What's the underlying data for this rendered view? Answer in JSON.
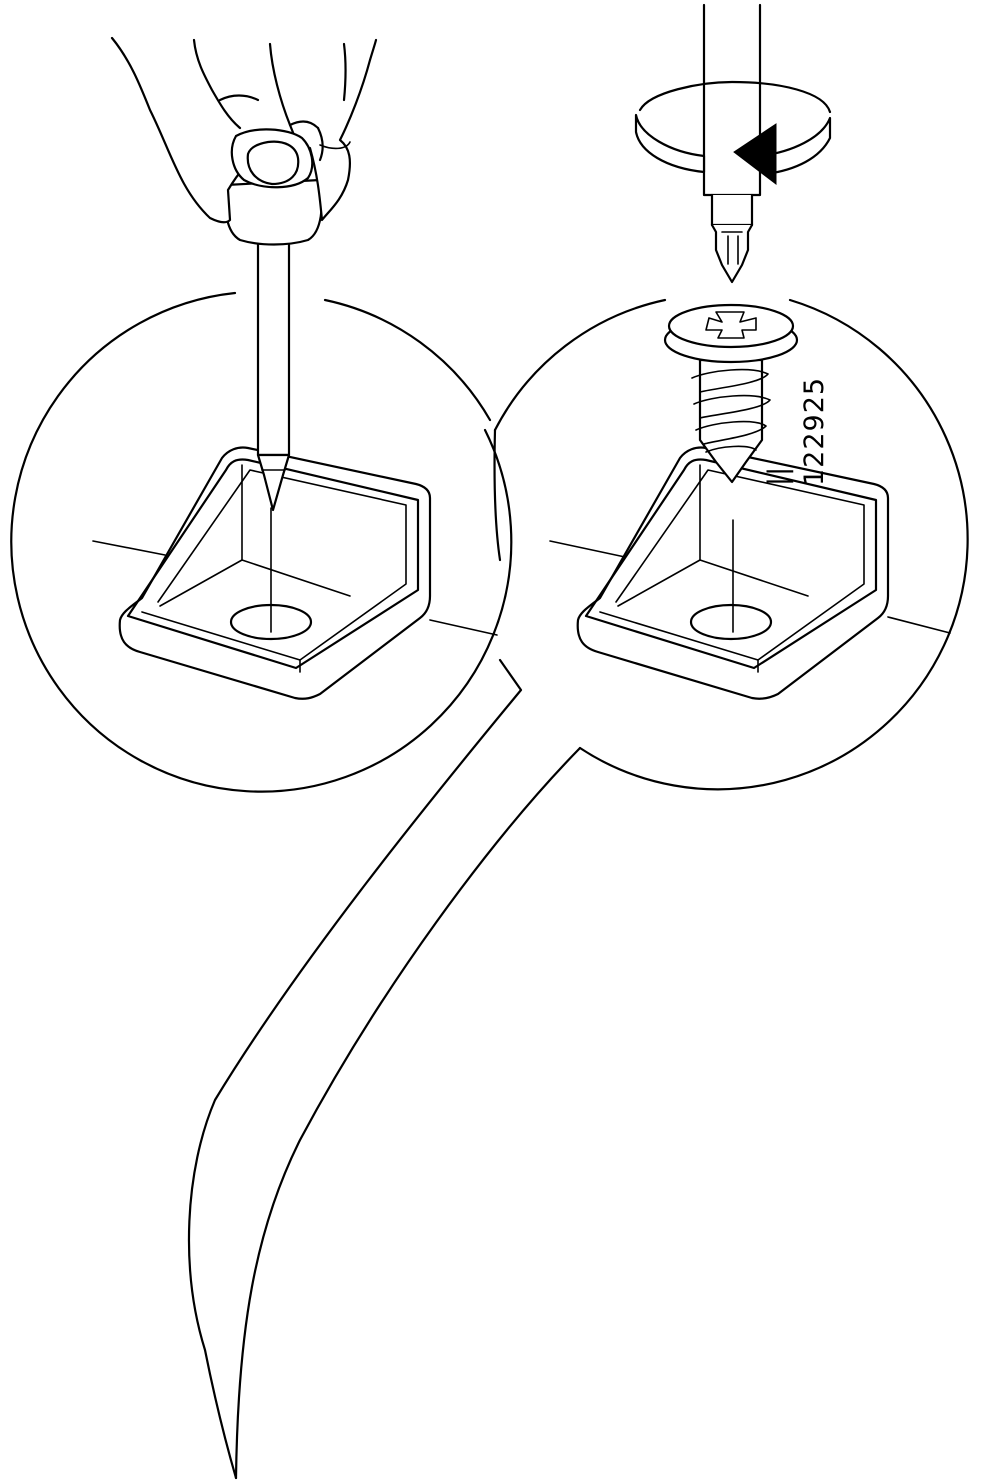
{
  "part_label": {
    "quantity_mark": "||",
    "article_number": "122925"
  },
  "steps": [
    {
      "step": "pre-drill-with-awl"
    },
    {
      "step": "drive-screw-with-screwdriver"
    }
  ],
  "colors": {
    "line": "#000000",
    "background": "#ffffff"
  }
}
